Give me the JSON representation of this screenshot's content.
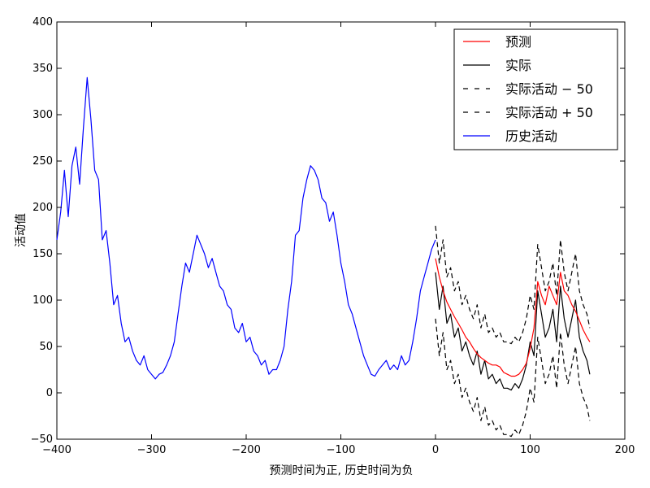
{
  "chart_data": {
    "type": "line",
    "title": "",
    "xlabel": "预测时间为正, 历史时间为负",
    "ylabel": "活动值",
    "xlim": [
      -400,
      200
    ],
    "ylim": [
      -50,
      400
    ],
    "x_ticks": [
      "−400",
      "−300",
      "−200",
      "−100",
      "0",
      "100",
      "200"
    ],
    "y_ticks": [
      "−50",
      "0",
      "50",
      "100",
      "150",
      "200",
      "250",
      "300",
      "350",
      "400"
    ],
    "grid": false,
    "legend_position": "top-right",
    "series": [
      {
        "name": "预测",
        "color": "#ff0000",
        "dash": "solid",
        "x": [
          0,
          4,
          8,
          12,
          16,
          20,
          24,
          28,
          32,
          36,
          40,
          44,
          48,
          52,
          56,
          60,
          64,
          68,
          72,
          76,
          80,
          84,
          88,
          92,
          96,
          100,
          104,
          108,
          112,
          116,
          120,
          124,
          128,
          132,
          136,
          140,
          144,
          148,
          152,
          156,
          160,
          163
        ],
        "y": [
          145,
          125,
          110,
          98,
          90,
          82,
          75,
          68,
          60,
          55,
          48,
          42,
          38,
          35,
          32,
          30,
          30,
          28,
          22,
          20,
          18,
          18,
          20,
          25,
          32,
          48,
          70,
          120,
          105,
          95,
          115,
          105,
          95,
          130,
          110,
          105,
          95,
          88,
          78,
          68,
          60,
          55
        ]
      },
      {
        "name": "实际",
        "color": "#000000",
        "dash": "solid",
        "x": [
          0,
          4,
          8,
          12,
          16,
          20,
          24,
          28,
          32,
          36,
          40,
          44,
          48,
          52,
          56,
          60,
          64,
          68,
          72,
          76,
          80,
          84,
          88,
          92,
          96,
          100,
          104,
          108,
          112,
          116,
          120,
          124,
          128,
          132,
          136,
          140,
          144,
          148,
          152,
          156,
          160,
          163
        ],
        "y": [
          130,
          90,
          115,
          75,
          85,
          60,
          70,
          45,
          55,
          40,
          30,
          45,
          20,
          35,
          15,
          20,
          10,
          15,
          5,
          5,
          3,
          10,
          5,
          15,
          30,
          55,
          40,
          110,
          85,
          60,
          70,
          90,
          55,
          115,
          80,
          60,
          80,
          100,
          60,
          45,
          35,
          20
        ]
      },
      {
        "name": "实际活动 − 50",
        "color": "#000000",
        "dash": "dashed",
        "x": [
          0,
          4,
          8,
          12,
          16,
          20,
          24,
          28,
          32,
          36,
          40,
          44,
          48,
          52,
          56,
          60,
          64,
          68,
          72,
          76,
          80,
          84,
          88,
          92,
          96,
          100,
          104,
          108,
          112,
          116,
          120,
          124,
          128,
          132,
          136,
          140,
          144,
          148,
          152,
          156,
          160,
          163
        ],
        "y": [
          80,
          40,
          65,
          25,
          35,
          10,
          20,
          -5,
          5,
          -10,
          -20,
          -5,
          -30,
          -15,
          -35,
          -30,
          -40,
          -35,
          -45,
          -45,
          -47,
          -40,
          -45,
          -35,
          -20,
          5,
          -10,
          60,
          35,
          10,
          20,
          40,
          5,
          65,
          30,
          10,
          30,
          50,
          10,
          -5,
          -15,
          -30
        ]
      },
      {
        "name": "实际活动 + 50",
        "color": "#000000",
        "dash": "dashed",
        "x": [
          0,
          4,
          8,
          12,
          16,
          20,
          24,
          28,
          32,
          36,
          40,
          44,
          48,
          52,
          56,
          60,
          64,
          68,
          72,
          76,
          80,
          84,
          88,
          92,
          96,
          100,
          104,
          108,
          112,
          116,
          120,
          124,
          128,
          132,
          136,
          140,
          144,
          148,
          152,
          156,
          160,
          163
        ],
        "y": [
          180,
          140,
          165,
          125,
          135,
          110,
          120,
          95,
          105,
          90,
          80,
          95,
          70,
          85,
          65,
          70,
          60,
          65,
          55,
          55,
          53,
          60,
          55,
          65,
          80,
          105,
          90,
          160,
          135,
          110,
          120,
          140,
          105,
          165,
          130,
          110,
          130,
          150,
          110,
          95,
          85,
          70
        ]
      },
      {
        "name": "历史活动",
        "color": "#0000ff",
        "dash": "solid",
        "x": [
          -400,
          -396,
          -392,
          -388,
          -384,
          -380,
          -376,
          -372,
          -368,
          -364,
          -360,
          -356,
          -352,
          -348,
          -344,
          -340,
          -336,
          -332,
          -328,
          -324,
          -320,
          -316,
          -312,
          -308,
          -304,
          -300,
          -296,
          -292,
          -288,
          -284,
          -280,
          -276,
          -272,
          -268,
          -264,
          -260,
          -256,
          -252,
          -248,
          -244,
          -240,
          -236,
          -232,
          -228,
          -224,
          -220,
          -216,
          -212,
          -208,
          -204,
          -200,
          -196,
          -192,
          -188,
          -184,
          -180,
          -176,
          -172,
          -168,
          -164,
          -160,
          -156,
          -152,
          -148,
          -144,
          -140,
          -136,
          -132,
          -128,
          -124,
          -120,
          -116,
          -112,
          -108,
          -104,
          -100,
          -96,
          -92,
          -88,
          -84,
          -80,
          -76,
          -72,
          -68,
          -64,
          -60,
          -56,
          -52,
          -48,
          -44,
          -40,
          -36,
          -32,
          -28,
          -24,
          -20,
          -16,
          -12,
          -8,
          -4,
          0
        ],
        "y": [
          165,
          195,
          240,
          190,
          245,
          265,
          225,
          285,
          340,
          295,
          240,
          230,
          165,
          175,
          140,
          95,
          105,
          75,
          55,
          60,
          45,
          35,
          30,
          40,
          25,
          20,
          15,
          20,
          22,
          30,
          40,
          55,
          85,
          115,
          140,
          130,
          150,
          170,
          160,
          150,
          135,
          145,
          130,
          115,
          110,
          95,
          90,
          70,
          65,
          75,
          55,
          60,
          45,
          40,
          30,
          35,
          20,
          25,
          25,
          35,
          50,
          90,
          120,
          170,
          175,
          210,
          230,
          245,
          240,
          230,
          210,
          205,
          185,
          195,
          170,
          140,
          120,
          95,
          85,
          70,
          55,
          40,
          30,
          20,
          18,
          25,
          30,
          35,
          25,
          30,
          25,
          40,
          30,
          35,
          55,
          80,
          110,
          125,
          140,
          155,
          165
        ]
      }
    ]
  }
}
